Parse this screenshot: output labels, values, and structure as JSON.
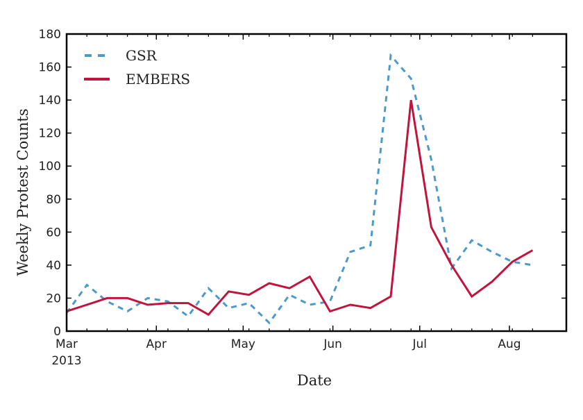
{
  "chart_data": {
    "type": "line",
    "title": "",
    "xlabel": "Date",
    "ylabel": "Weekly Protest Counts",
    "ylim": [
      0,
      180
    ],
    "yticks": [
      0,
      20,
      40,
      60,
      80,
      100,
      120,
      140,
      160,
      180
    ],
    "xtick_labels": [
      "Mar\n2013",
      "Apr",
      "May",
      "Jun",
      "Jul",
      "Aug"
    ],
    "xtick_labels_display": [
      {
        "line1": "Mar",
        "line2": "2013"
      },
      {
        "line1": "Apr",
        "line2": ""
      },
      {
        "line1": "May",
        "line2": ""
      },
      {
        "line1": "Jun",
        "line2": ""
      },
      {
        "line1": "Jul",
        "line2": ""
      },
      {
        "line1": "Aug",
        "line2": ""
      }
    ],
    "x": [
      "2013-03-01",
      "2013-03-08",
      "2013-03-15",
      "2013-03-22",
      "2013-03-29",
      "2013-04-05",
      "2013-04-12",
      "2013-04-19",
      "2013-04-26",
      "2013-05-03",
      "2013-05-10",
      "2013-05-17",
      "2013-05-24",
      "2013-05-31",
      "2013-06-07",
      "2013-06-14",
      "2013-06-21",
      "2013-06-28",
      "2013-07-05",
      "2013-07-12",
      "2013-07-19",
      "2013-07-26",
      "2013-08-02",
      "2013-08-09"
    ],
    "grid": false,
    "legend_position": "upper left",
    "series": [
      {
        "name": "GSR",
        "style": "dashed",
        "color": "#4c9ac9",
        "values": [
          11,
          28,
          18,
          12,
          20,
          18,
          9,
          26,
          14,
          17,
          5,
          22,
          16,
          18,
          48,
          52,
          167,
          153,
          104,
          38,
          55,
          48,
          42,
          40
        ]
      },
      {
        "name": "EMBERS",
        "style": "solid",
        "color": "#c0143c",
        "values": [
          12,
          16,
          20,
          20,
          16,
          17,
          17,
          10,
          24,
          22,
          29,
          26,
          33,
          12,
          16,
          14,
          21,
          140,
          63,
          40,
          21,
          30,
          42,
          49
        ]
      }
    ]
  },
  "legend": {
    "items": [
      {
        "label": "GSR",
        "color": "#4c9ac9",
        "style": "dashed"
      },
      {
        "label": "EMBERS",
        "color": "#c0143c",
        "style": "solid"
      }
    ]
  },
  "axes": {
    "xlabel": "Date",
    "ylabel": "Weekly Protest Counts"
  }
}
